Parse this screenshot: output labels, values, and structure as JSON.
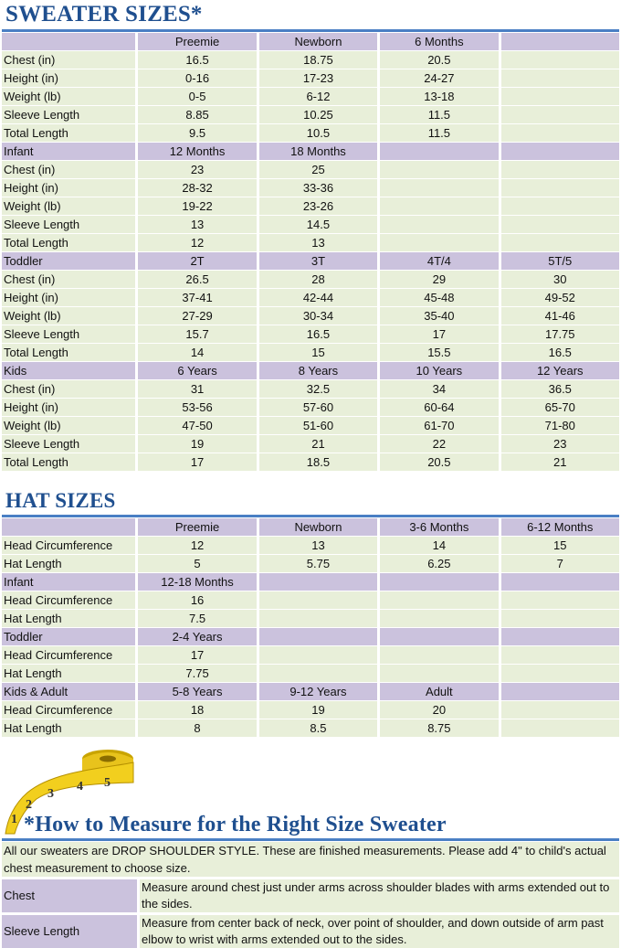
{
  "sweater": {
    "title": "SWEATER SIZES*",
    "sections": [
      {
        "header": [
          "",
          "Preemie",
          "Newborn",
          "6 Months",
          ""
        ],
        "rows": [
          [
            "Chest (in)",
            "16.5",
            "18.75",
            "20.5",
            ""
          ],
          [
            "Height (in)",
            "0-16",
            "17-23",
            "24-27",
            ""
          ],
          [
            "Weight (lb)",
            "0-5",
            "6-12",
            "13-18",
            ""
          ],
          [
            "Sleeve Length",
            "8.85",
            "10.25",
            "11.5",
            ""
          ],
          [
            "Total Length",
            "9.5",
            "10.5",
            "11.5",
            ""
          ]
        ]
      },
      {
        "header": [
          "Infant",
          "12 Months",
          "18 Months",
          "",
          ""
        ],
        "rows": [
          [
            "Chest (in)",
            "23",
            "25",
            "",
            ""
          ],
          [
            "Height (in)",
            "28-32",
            "33-36",
            "",
            ""
          ],
          [
            "Weight (lb)",
            "19-22",
            "23-26",
            "",
            ""
          ],
          [
            "Sleeve Length",
            "13",
            "14.5",
            "",
            ""
          ],
          [
            "Total Length",
            "12",
            "13",
            "",
            ""
          ]
        ]
      },
      {
        "header": [
          "Toddler",
          "2T",
          "3T",
          "4T/4",
          "5T/5"
        ],
        "rows": [
          [
            "Chest (in)",
            "26.5",
            "28",
            "29",
            "30"
          ],
          [
            "Height (in)",
            "37-41",
            "42-44",
            "45-48",
            "49-52"
          ],
          [
            "Weight (lb)",
            "27-29",
            "30-34",
            "35-40",
            "41-46"
          ],
          [
            "Sleeve Length",
            "15.7",
            "16.5",
            "17",
            "17.75"
          ],
          [
            "Total Length",
            "14",
            "15",
            "15.5",
            "16.5"
          ]
        ]
      },
      {
        "header": [
          "Kids",
          "6 Years",
          "8 Years",
          "10 Years",
          "12 Years"
        ],
        "rows": [
          [
            "Chest (in)",
            "31",
            "32.5",
            "34",
            "36.5"
          ],
          [
            "Height (in)",
            "53-56",
            "57-60",
            "60-64",
            "65-70"
          ],
          [
            "Weight (lb)",
            "47-50",
            "51-60",
            "61-70",
            "71-80"
          ],
          [
            "Sleeve Length",
            "19",
            "21",
            "22",
            "23"
          ],
          [
            "Total Length",
            "17",
            "18.5",
            "20.5",
            "21"
          ]
        ]
      }
    ]
  },
  "hat": {
    "title": "HAT SIZES",
    "sections": [
      {
        "header": [
          "",
          "Preemie",
          "Newborn",
          "3-6 Months",
          "6-12 Months"
        ],
        "rows": [
          [
            "Head Circumference",
            "12",
            "13",
            "14",
            "15"
          ],
          [
            "Hat Length",
            "5",
            "5.75",
            "6.25",
            "7"
          ]
        ]
      },
      {
        "header": [
          "Infant",
          "12-18 Months",
          "",
          "",
          ""
        ],
        "rows": [
          [
            "Head Circumference",
            "16",
            "",
            "",
            ""
          ],
          [
            "Hat Length",
            "7.5",
            "",
            "",
            ""
          ]
        ]
      },
      {
        "header": [
          "Toddler",
          "2-4 Years",
          "",
          "",
          ""
        ],
        "rows": [
          [
            "Head Circumference",
            "17",
            "",
            "",
            ""
          ],
          [
            "Hat Length",
            "7.75",
            "",
            "",
            ""
          ]
        ]
      },
      {
        "header": [
          "Kids & Adult",
          "5-8 Years",
          "9-12 Years",
          "Adult",
          ""
        ],
        "rows": [
          [
            "Head Circumference",
            "18",
            "19",
            "20",
            ""
          ],
          [
            "Hat Length",
            "8",
            "8.5",
            "8.75",
            ""
          ]
        ]
      }
    ]
  },
  "measure": {
    "title": "*How to Measure for the Right Size Sweater",
    "intro": "All our sweaters are DROP SHOULDER STYLE.  These are finished measurements.  Please add 4\" to child's actual chest measurement to choose size.",
    "items": [
      {
        "label": "Chest",
        "text": "Measure around chest just under arms across shoulder blades with arms extended out to the sides."
      },
      {
        "label": "Sleeve Length",
        "text": "Measure from center back of neck, over point of shoulder, and down outside of arm past elbow to wrist with arms extended out to the sides."
      }
    ],
    "tape_numbers": [
      "1",
      "2",
      "3",
      "4",
      "5"
    ]
  },
  "colors": {
    "title": "#1f4f8f",
    "rule": "#4a7fc4",
    "header_fill": "#cbc2dd",
    "data_fill": "#e8efd9"
  }
}
